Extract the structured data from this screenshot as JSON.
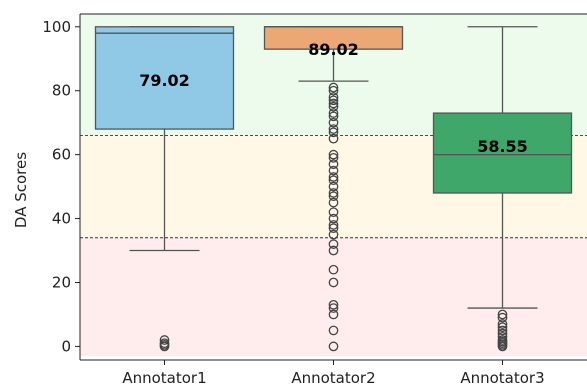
{
  "chart_data": {
    "type": "box",
    "ylabel": "DA Scores",
    "xlabel": "",
    "ylim": [
      -3,
      104
    ],
    "yticks": [
      0,
      20,
      40,
      60,
      80,
      100
    ],
    "categories": [
      "Annotator1",
      "Annotator2",
      "Annotator3"
    ],
    "boxes": [
      {
        "name": "Annotator1",
        "color": "#8fc9e6",
        "q1": 68,
        "median": 98,
        "q3": 100,
        "whisker_low": 30,
        "whisker_high": 100,
        "median_label": "79.02",
        "outliers": [
          0,
          0.5,
          1,
          2
        ]
      },
      {
        "name": "Annotator2",
        "color": "#eca874",
        "q1": 93,
        "median": 100,
        "q3": 100,
        "whisker_low": 83,
        "whisker_high": 100,
        "median_label": "89.02",
        "outliers": [
          81,
          80,
          78,
          77,
          76,
          75,
          73,
          72,
          70,
          68,
          67,
          65,
          60,
          59,
          57,
          55,
          53,
          52,
          50,
          48,
          47,
          45,
          42,
          40,
          38,
          37,
          35,
          32,
          30,
          24,
          20,
          13,
          12,
          10,
          5,
          0
        ]
      },
      {
        "name": "Annotator3",
        "color": "#3fa76a",
        "q1": 48,
        "median": 60,
        "q3": 73,
        "whisker_low": 12,
        "whisker_high": 100,
        "median_label": "58.55",
        "outliers": [
          10,
          9,
          7,
          6,
          5,
          4,
          3,
          2,
          1.5,
          1,
          0.5,
          0
        ]
      }
    ],
    "bands": [
      {
        "from": 66,
        "to": 104,
        "color": "#ecfbec"
      },
      {
        "from": 34,
        "to": 66,
        "color": "#fff8e6"
      },
      {
        "from": -3,
        "to": 34,
        "color": "#ffecec"
      }
    ],
    "reference_lines": [
      66,
      34
    ],
    "grid": false
  }
}
